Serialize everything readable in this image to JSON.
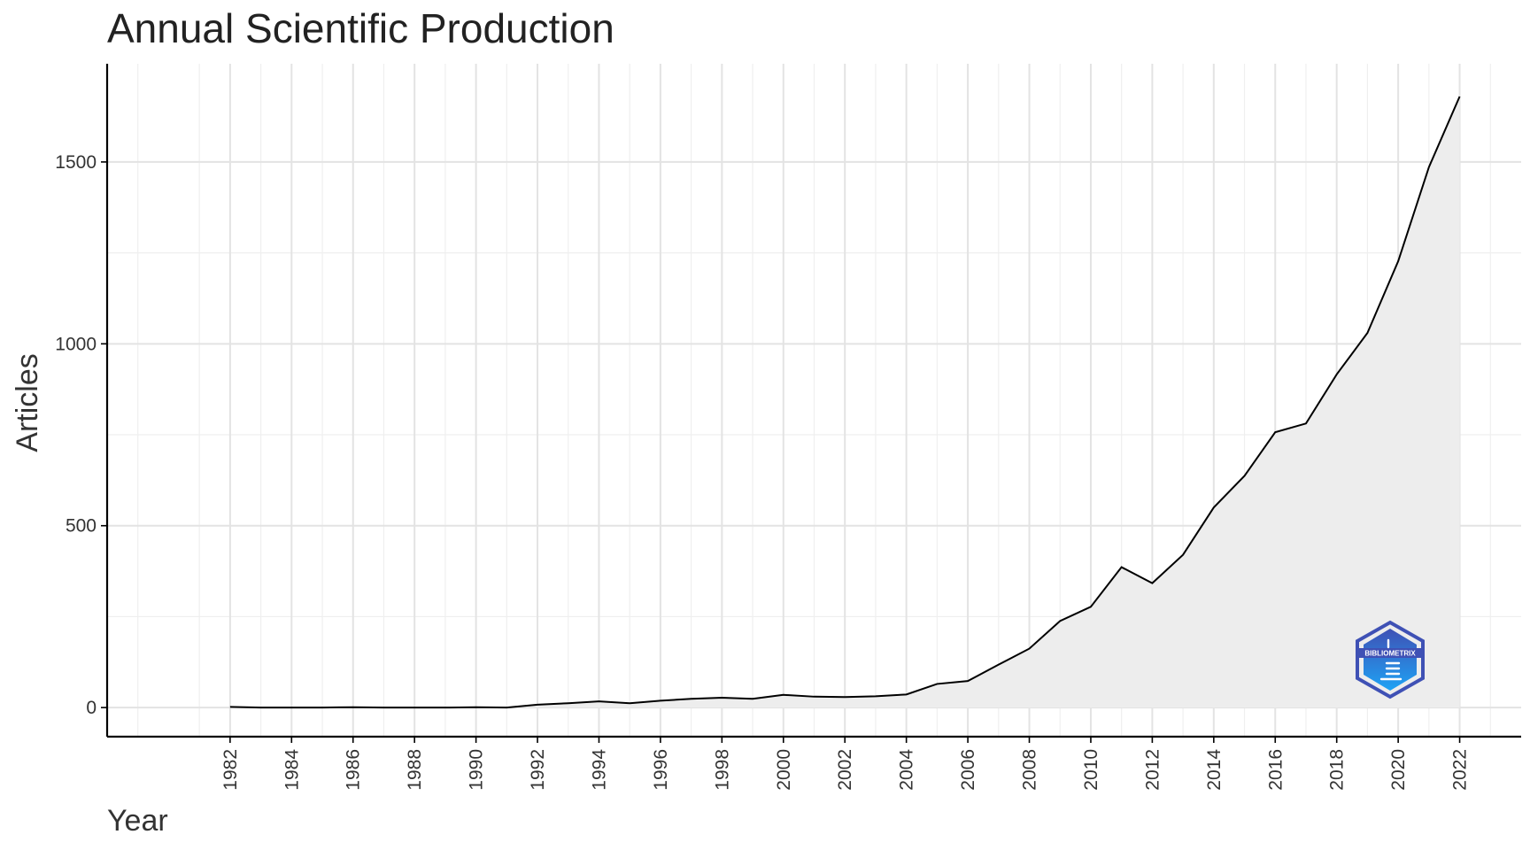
{
  "chart_data": {
    "type": "area",
    "title": "Annual Scientific Production",
    "xlabel": "Year",
    "ylabel": "Articles",
    "x_ticks": [
      "1982",
      "1984",
      "1986",
      "1988",
      "1990",
      "1992",
      "1994",
      "1996",
      "1998",
      "2000",
      "2002",
      "2004",
      "2006",
      "2008",
      "2010",
      "2012",
      "2014",
      "2016",
      "2018",
      "2020",
      "2022"
    ],
    "y_ticks": [
      "0",
      "500",
      "1000",
      "1500"
    ],
    "xlim": [
      1978,
      2024
    ],
    "ylim": [
      -80,
      1770
    ],
    "grid": true,
    "legend": "none",
    "series": [
      {
        "x": [
          1982,
          1983,
          1984,
          1985,
          1986,
          1987,
          1988,
          1989,
          1990,
          1991,
          1992,
          1993,
          1994,
          1995,
          1996,
          1997,
          1998,
          1999,
          2000,
          2001,
          2002,
          2003,
          2004,
          2005,
          2006,
          2007,
          2008,
          2009,
          2010,
          2011,
          2012,
          2013,
          2014,
          2015,
          2016,
          2017,
          2018,
          2019,
          2020,
          2021,
          2022
        ],
        "y": [
          2,
          0,
          0,
          0,
          1,
          0,
          0,
          0,
          1,
          0,
          8,
          12,
          17,
          12,
          19,
          24,
          27,
          24,
          35,
          30,
          29,
          31,
          36,
          65,
          73,
          118,
          162,
          238,
          277,
          386,
          342,
          420,
          550,
          637,
          757,
          781,
          916,
          1030,
          1227,
          1486,
          1680
        ]
      }
    ],
    "line_color": "#000000",
    "fill_color": "#ededed"
  },
  "watermark": {
    "text": "BIBLIOMETRIX",
    "colors": [
      "#3f51b5",
      "#1ea3f5"
    ]
  }
}
